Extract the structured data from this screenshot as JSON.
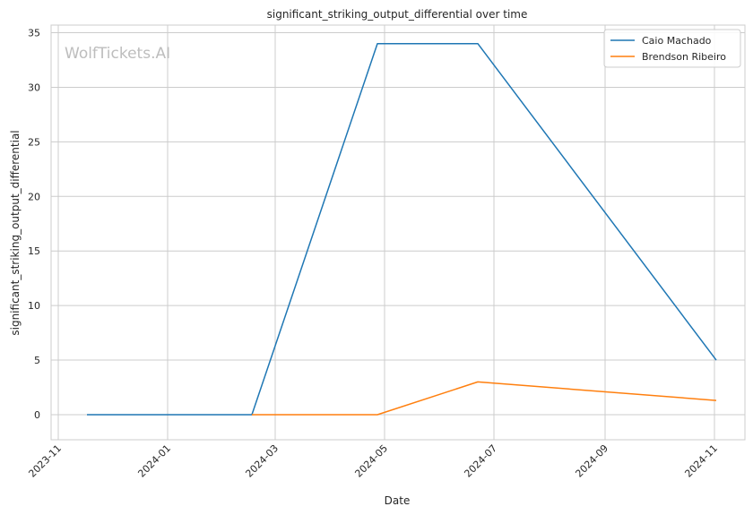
{
  "chart_data": {
    "type": "line",
    "title": "significant_striking_output_differential over time",
    "xlabel": "Date",
    "ylabel": "significant_striking_output_differential",
    "watermark": "WolfTickets.AI",
    "x_ticks": [
      "2023-11",
      "2024-01",
      "2024-03",
      "2024-05",
      "2024-07",
      "2024-09",
      "2024-11"
    ],
    "y_ticks": [
      0,
      5,
      10,
      15,
      20,
      25,
      30,
      35
    ],
    "xlim": [
      "2023-10-28",
      "2024-11-18"
    ],
    "ylim": [
      -2.3,
      35.7
    ],
    "grid": true,
    "legend_position": "top-right",
    "series": [
      {
        "name": "Caio Machado",
        "color": "#1f77b4",
        "points": [
          {
            "x": "2023-11-17",
            "y": 0
          },
          {
            "x": "2024-02-17",
            "y": 0
          },
          {
            "x": "2024-04-27",
            "y": 34
          },
          {
            "x": "2024-06-22",
            "y": 34
          },
          {
            "x": "2024-11-02",
            "y": 5
          }
        ]
      },
      {
        "name": "Brendson Ribeiro",
        "color": "#ff7f0e",
        "points": [
          {
            "x": "2024-02-17",
            "y": 0
          },
          {
            "x": "2024-04-27",
            "y": 0
          },
          {
            "x": "2024-06-22",
            "y": 3
          },
          {
            "x": "2024-11-02",
            "y": 1.3
          }
        ]
      }
    ]
  }
}
